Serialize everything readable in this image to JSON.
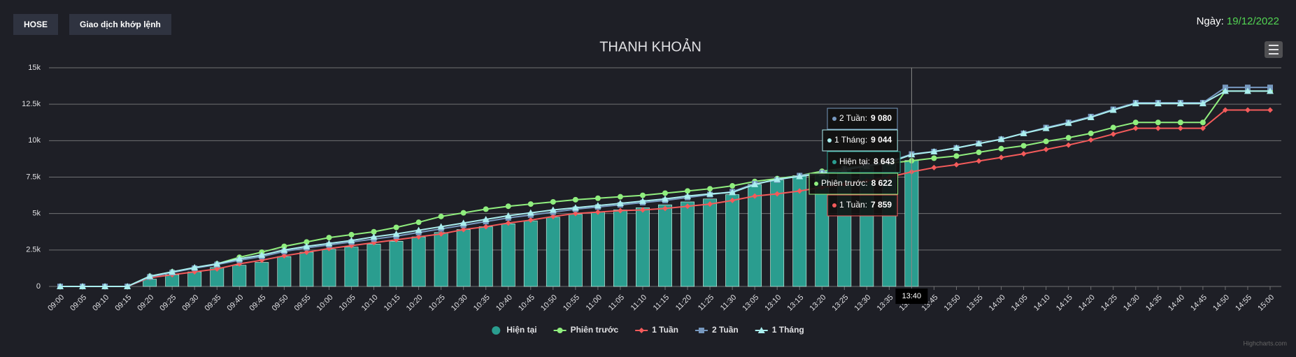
{
  "header": {
    "buttons": [
      "HOSE",
      "Giao dịch khớp lệnh"
    ],
    "date_label": "Ngày:",
    "date": "19/12/2022"
  },
  "chart_data": {
    "type": "bar-line",
    "title": "THANH KHOẢN",
    "credit": "Highcharts.com",
    "categories": [
      "09:00",
      "09:05",
      "09:10",
      "09:15",
      "09:20",
      "09:25",
      "09:30",
      "09:35",
      "09:40",
      "09:45",
      "09:50",
      "09:55",
      "10:00",
      "10:05",
      "10:10",
      "10:15",
      "10:20",
      "10:25",
      "10:30",
      "10:35",
      "10:40",
      "10:45",
      "10:50",
      "10:55",
      "11:00",
      "11:05",
      "11:10",
      "11:15",
      "11:20",
      "11:25",
      "11:30",
      "13:05",
      "13:10",
      "13:15",
      "13:20",
      "13:25",
      "13:30",
      "13:35",
      "13:40",
      "13:45",
      "13:50",
      "13:55",
      "14:00",
      "14:05",
      "14:10",
      "14:15",
      "14:20",
      "14:25",
      "14:30",
      "14:35",
      "14:40",
      "14:45",
      "14:50",
      "14:55",
      "15:00"
    ],
    "ylim": [
      0,
      15000
    ],
    "yticks": [
      0,
      {
        "value": 2500,
        "label": "2.5k"
      },
      {
        "value": 5000,
        "label": "5k"
      },
      {
        "value": 7500,
        "label": "7.5k"
      },
      {
        "value": 10000,
        "label": "10k"
      },
      {
        "value": 12500,
        "label": "12.5k"
      },
      {
        "value": 15000,
        "label": "15k"
      }
    ],
    "grid": true,
    "series": [
      {
        "name": "Hiện tại",
        "kind": "bar",
        "color": "#2a9d8f",
        "values": [
          0,
          0,
          0,
          0,
          500,
          800,
          1000,
          1300,
          1450,
          1650,
          2050,
          2350,
          2550,
          2700,
          2900,
          3100,
          3400,
          3700,
          3900,
          4100,
          4300,
          4500,
          4750,
          4950,
          5100,
          5250,
          5400,
          5600,
          5800,
          6000,
          6300,
          7000,
          7300,
          7600,
          7800,
          8000,
          8200,
          8400,
          8643,
          null,
          null,
          null,
          null,
          null,
          null,
          null,
          null,
          null,
          null,
          null,
          null,
          null,
          null,
          null,
          null
        ]
      },
      {
        "name": "Phiên trước",
        "kind": "line",
        "marker": "circle",
        "color": "#90ee7e",
        "values": [
          0,
          0,
          0,
          0,
          700,
          1000,
          1250,
          1550,
          2000,
          2350,
          2750,
          3050,
          3350,
          3550,
          3750,
          4050,
          4400,
          4800,
          5050,
          5300,
          5500,
          5650,
          5800,
          5950,
          6050,
          6150,
          6250,
          6400,
          6550,
          6700,
          6900,
          7200,
          7400,
          7600,
          7900,
          8100,
          8300,
          8450,
          8622,
          8800,
          8950,
          9200,
          9450,
          9650,
          9950,
          10200,
          10500,
          10900,
          11250,
          11250,
          11250,
          11250,
          13400,
          13400,
          13400
        ]
      },
      {
        "name": "1 Tuần",
        "kind": "line",
        "marker": "diamond",
        "color": "#f45b5b",
        "values": [
          0,
          0,
          0,
          0,
          600,
          800,
          1000,
          1200,
          1550,
          1800,
          2100,
          2350,
          2600,
          2800,
          3000,
          3200,
          3400,
          3600,
          3900,
          4100,
          4350,
          4550,
          4800,
          5000,
          5100,
          5200,
          5250,
          5350,
          5500,
          5650,
          5900,
          6200,
          6350,
          6550,
          6800,
          7000,
          7250,
          7500,
          7859,
          8150,
          8350,
          8600,
          8850,
          9100,
          9400,
          9700,
          10050,
          10450,
          10850,
          10850,
          10850,
          10850,
          12100,
          12100,
          12100
        ]
      },
      {
        "name": "2 Tuần",
        "kind": "line",
        "marker": "square",
        "color": "#7798bf",
        "values": [
          0,
          0,
          0,
          0,
          650,
          950,
          1250,
          1500,
          1800,
          2050,
          2400,
          2650,
          2850,
          3050,
          3250,
          3450,
          3700,
          3950,
          4200,
          4450,
          4700,
          4900,
          5100,
          5300,
          5450,
          5600,
          5750,
          5900,
          6100,
          6300,
          6500,
          7050,
          7300,
          7600,
          7800,
          8050,
          8300,
          8550,
          9080,
          9250,
          9500,
          9800,
          10100,
          10500,
          10900,
          11250,
          11650,
          12150,
          12600,
          12600,
          12600,
          12600,
          13650,
          13650,
          13650
        ]
      },
      {
        "name": "1 Tháng",
        "kind": "line",
        "marker": "triangle",
        "color": "#aaeeee",
        "values": [
          0,
          0,
          0,
          0,
          700,
          1000,
          1300,
          1550,
          1900,
          2150,
          2500,
          2750,
          2950,
          3150,
          3400,
          3600,
          3850,
          4100,
          4350,
          4600,
          4850,
          5050,
          5250,
          5400,
          5550,
          5700,
          5850,
          6000,
          6200,
          6350,
          6450,
          7000,
          7350,
          7550,
          7750,
          8000,
          8250,
          8500,
          9044,
          9250,
          9500,
          9800,
          10100,
          10500,
          10850,
          11200,
          11600,
          12100,
          12550,
          12550,
          12550,
          12550,
          13400,
          13400,
          13400
        ]
      }
    ],
    "tooltip": {
      "category": "13:40",
      "rows": [
        {
          "label": "2 Tuần:",
          "value": 9080,
          "value_label": "9 080",
          "color": "#7798bf"
        },
        {
          "label": "1 Tháng:",
          "value": 9044,
          "value_label": "9 044",
          "color": "#aaeeee"
        },
        {
          "label": "Hiện tại:",
          "value": 8643,
          "value_label": "8 643",
          "color": "#2a9d8f"
        },
        {
          "label": "Phiên trước:",
          "value": 8622,
          "value_label": "8 622",
          "color": "#90ee7e"
        },
        {
          "label": "1 Tuần:",
          "value": 7859,
          "value_label": "7 859",
          "color": "#f45b5b"
        }
      ]
    }
  }
}
